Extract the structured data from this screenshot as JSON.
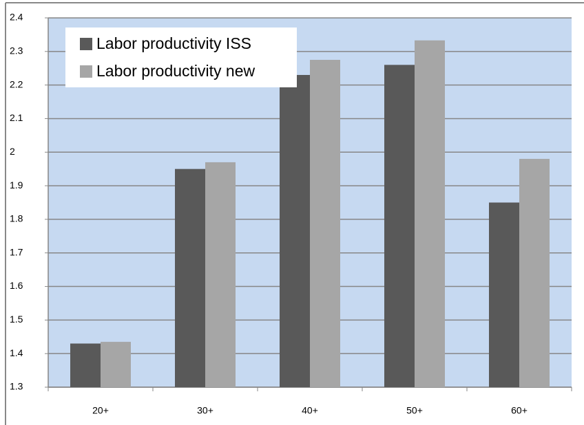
{
  "chart_data": {
    "type": "bar",
    "categories": [
      "20+",
      "30+",
      "40+",
      "50+",
      "60+"
    ],
    "series": [
      {
        "name": "Labor productivity ISS",
        "color": "#595959",
        "values": [
          1.43,
          1.95,
          2.23,
          2.26,
          1.85
        ]
      },
      {
        "name": "Labor productivity new",
        "color": "#a6a6a6",
        "values": [
          1.435,
          1.97,
          2.275,
          2.333,
          1.98
        ]
      }
    ],
    "ylim": [
      1.3,
      2.4
    ],
    "yticks": [
      1.3,
      1.4,
      1.5,
      1.6,
      1.7,
      1.8,
      1.9,
      2,
      2.1,
      2.2,
      2.3,
      2.4
    ],
    "grid": true,
    "legend": "top-left"
  }
}
